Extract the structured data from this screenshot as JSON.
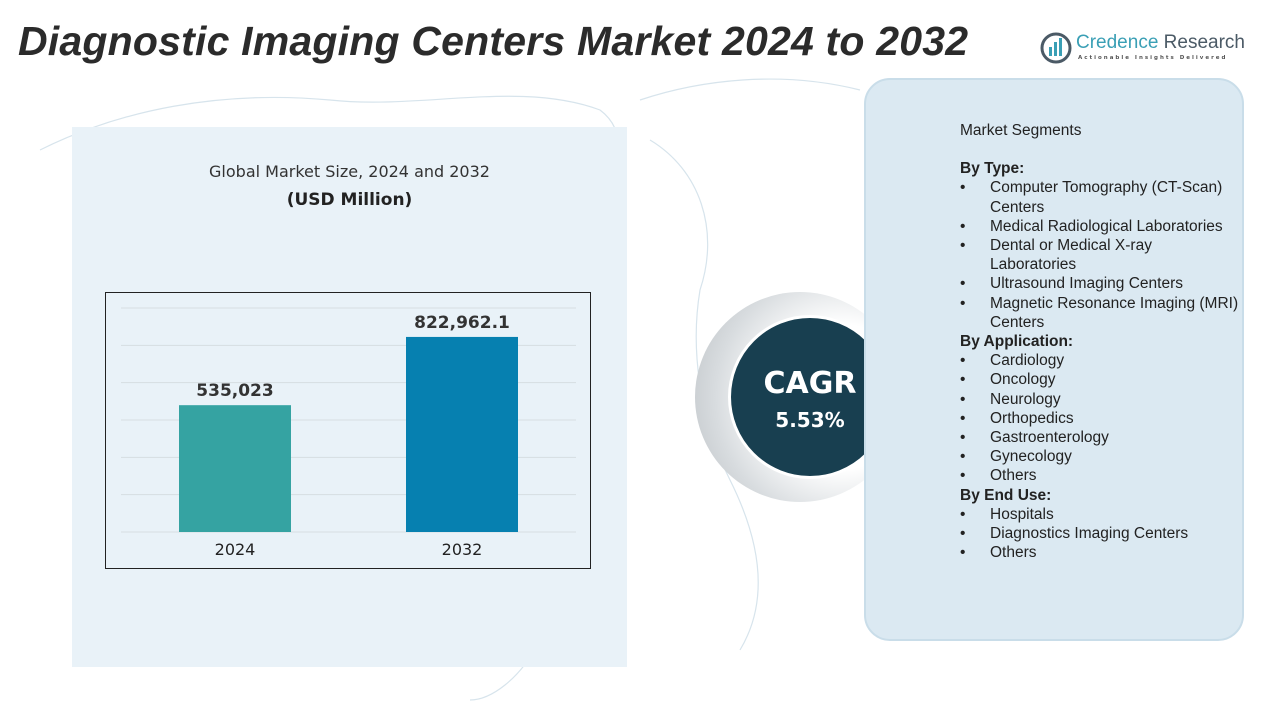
{
  "header": {
    "title": "Diagnostic Imaging Centers Market 2024 to 2032"
  },
  "logo": {
    "name_part1": "Credence",
    "name_part2": " Research",
    "tagline": "Actionable Insights Delivered"
  },
  "chart_data": {
    "type": "bar",
    "title": "Global Market Size, 2024 and 2032",
    "subtitle": "(USD Million)",
    "categories": [
      "2024",
      "2032"
    ],
    "values": [
      535023,
      822962.1
    ],
    "value_labels": [
      "535,023",
      "822,962.1"
    ],
    "colors": [
      "#35a3a2",
      "#0680b0"
    ],
    "ylim": [
      0,
      945000
    ],
    "grid": true,
    "legend": "none"
  },
  "cagr": {
    "label": "CAGR",
    "value": "5.53%"
  },
  "segments": {
    "heading": "Market Segments",
    "groups": [
      {
        "label": "By Type:",
        "items": [
          "Computer Tomography (CT-Scan) Centers",
          "Medical Radiological Laboratories",
          "Dental or Medical X-ray Laboratories",
          "Ultrasound Imaging Centers",
          "Magnetic Resonance Imaging (MRI) Centers"
        ]
      },
      {
        "label": "By Application:",
        "items": [
          "Cardiology",
          "Oncology",
          "Neurology",
          "Orthopedics",
          "Gastroenterology",
          "Gynecology",
          "Others"
        ]
      },
      {
        "label": "By End Use:",
        "items": [
          "Hospitals",
          "Diagnostics Imaging Centers",
          "Others"
        ]
      }
    ]
  }
}
